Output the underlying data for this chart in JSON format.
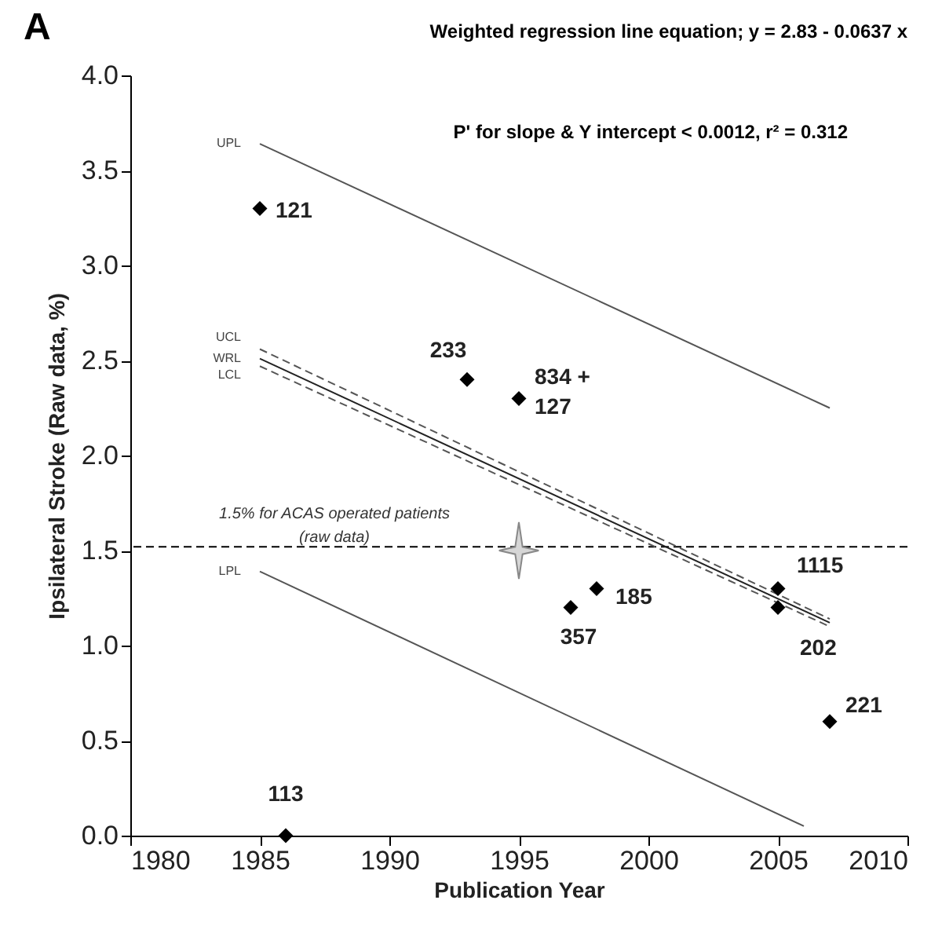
{
  "chart_data": {
    "type": "scatter",
    "xlabel": "Publication Year",
    "ylabel": "Ipsilateral Stroke (Raw data, %)",
    "annotations": [
      "A",
      "Weighted regression line equation; y = 2.83 - 0.0637 x",
      "P' for slope & Y intercept  < 0.0012, r² = 0.312",
      {
        "text": "121",
        "x": 1985,
        "y": 3.3
      },
      {
        "text": "113",
        "x": 1986,
        "y": 0
      },
      {
        "text": "233",
        "x": 1993,
        "y": 2.4
      },
      {
        "text": "834 +\n127",
        "x": 1995,
        "y": 2.3
      },
      {
        "text": "357",
        "x": 1997,
        "y": 1.2
      },
      {
        "text": "185",
        "x": 1998,
        "y": 1.3
      },
      {
        "text": "1115",
        "x": 2005,
        "y": 1.3
      },
      {
        "text": "202",
        "x": 2005,
        "y": 1.2
      },
      {
        "text": "221",
        "x": 2007,
        "y": 0.6
      }
    ],
    "xlim": [
      1980,
      2010
    ],
    "xticks": [
      1980,
      1985,
      1990,
      1995,
      2000,
      2005,
      2010
    ],
    "ylim": [
      0,
      4
    ],
    "yticks": [
      {
        "value": 0,
        "label": "0.0"
      },
      {
        "value": 0.5,
        "label": "0.5"
      },
      {
        "value": 1,
        "label": "1.0"
      },
      {
        "value": 1.5,
        "label": "1.5"
      },
      {
        "value": 2,
        "label": "2.0"
      },
      {
        "value": 2.5,
        "label": "2.5"
      },
      {
        "value": 3,
        "label": "3.0"
      },
      {
        "value": 3.5,
        "label": "3.5"
      },
      {
        "value": 4,
        "label": "4.0"
      }
    ],
    "grid": false,
    "ref_lines": [
      {
        "axis": "y",
        "value": 1.52,
        "label": "1.5% for ACAS operated patients\n(raw data)",
        "color": "#000000",
        "line_style": "dashed"
      }
    ],
    "series": [
      {
        "name": "UPL",
        "type": "line",
        "color": "#555555",
        "line_style": "solid",
        "x": [
          1985,
          2007
        ],
        "values": [
          3.64,
          2.25
        ]
      },
      {
        "name": "UCL",
        "type": "line",
        "color": "#555555",
        "line_style": "dashed",
        "x": [
          1985,
          2007
        ],
        "values": [
          2.56,
          1.14
        ]
      },
      {
        "name": "WRL",
        "type": "line",
        "color": "#222222",
        "line_style": "solid",
        "x": [
          1985,
          2007
        ],
        "values": [
          2.51,
          1.12
        ]
      },
      {
        "name": "LCL",
        "type": "line",
        "color": "#555555",
        "line_style": "dashed",
        "x": [
          1985,
          2007
        ],
        "values": [
          2.47,
          1.1
        ]
      },
      {
        "name": "LPL",
        "type": "line",
        "color": "#555555",
        "line_style": "solid",
        "x": [
          1985,
          2006
        ],
        "values": [
          1.39,
          0.05
        ]
      },
      {
        "marker": "star",
        "color": "#d6d6d6",
        "x": [
          1995
        ],
        "values": [
          1.5
        ]
      },
      {
        "marker": "diamond",
        "color": "#000000",
        "x": [
          1985,
          1986,
          1993,
          1995,
          1997,
          1998,
          2005,
          2005,
          2007
        ],
        "values": [
          3.3,
          0,
          2.4,
          2.3,
          1.2,
          1.3,
          1.3,
          1.2,
          0.6
        ]
      }
    ]
  }
}
